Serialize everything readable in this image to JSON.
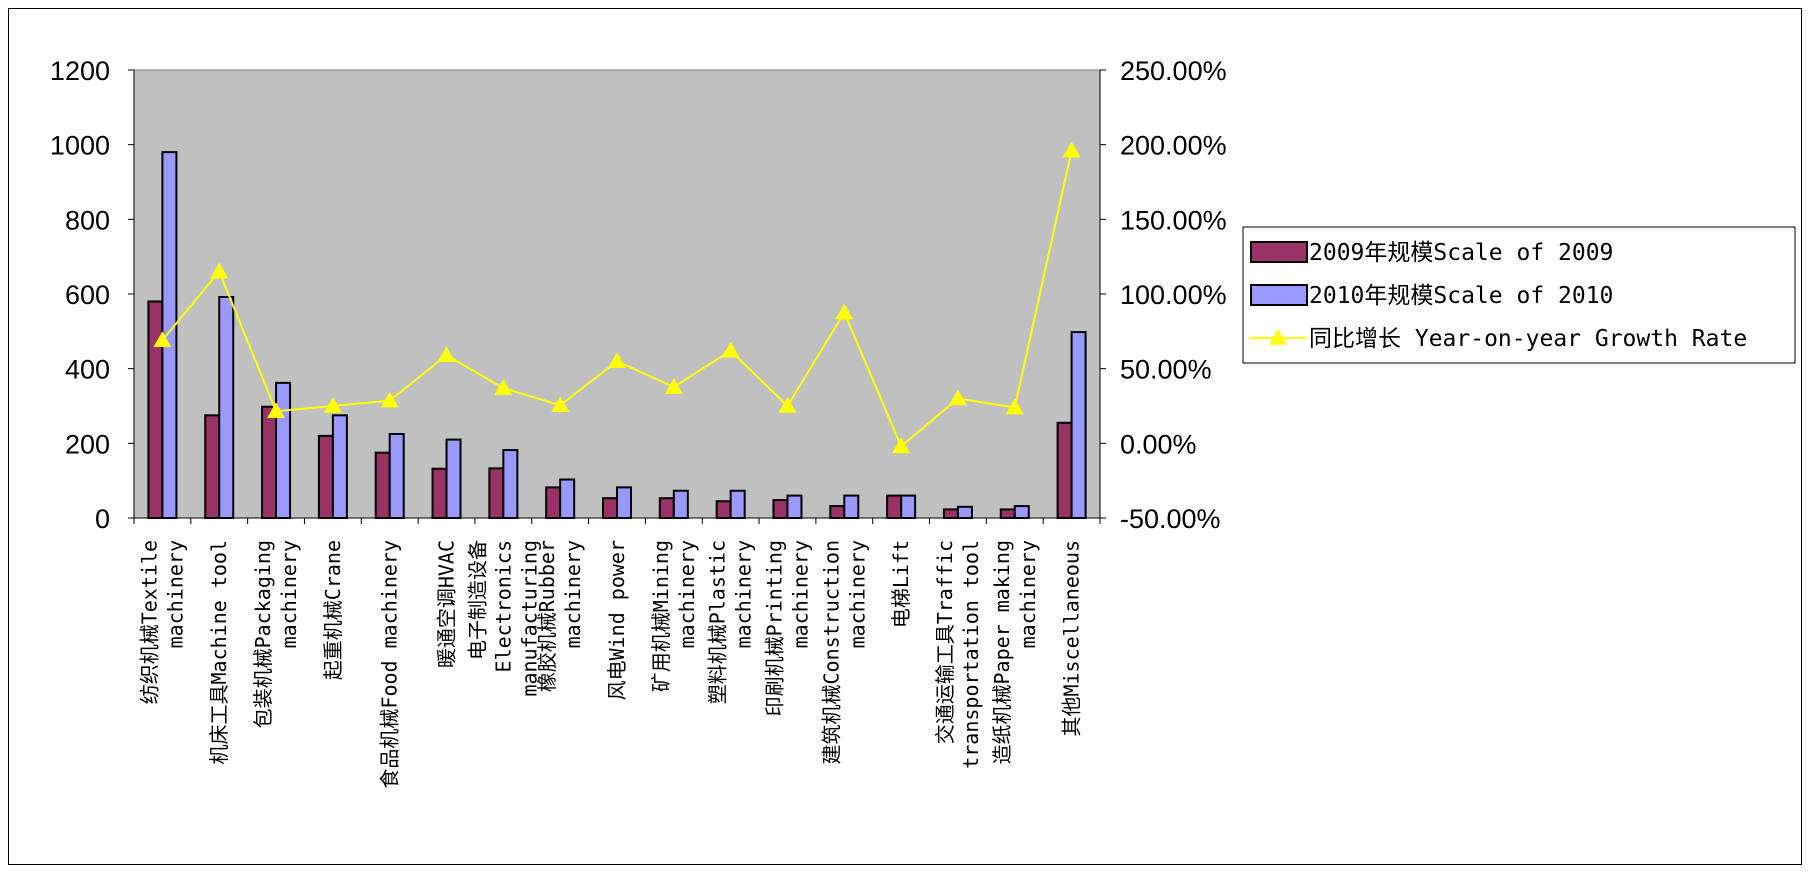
{
  "chart_data": {
    "type": "bar",
    "categories": [
      [
        "纺织机械Textile",
        "machinery"
      ],
      [
        "机床工具Machine  tool"
      ],
      [
        "包装机械Packaging",
        "machinery"
      ],
      [
        "起重机械Crane"
      ],
      [
        "食品机械Food  machinery"
      ],
      [
        "暖通空调HVAC"
      ],
      [
        "电子制造设备",
        "Electronics",
        "manufacturing"
      ],
      [
        "橡胶机械Rubber",
        "machinery"
      ],
      [
        "风电Wind  power"
      ],
      [
        "矿用机械Mining",
        "machinery"
      ],
      [
        "塑料机械Plastic",
        "machinery"
      ],
      [
        "印刷机械Printing",
        "machinery"
      ],
      [
        "建筑机械Construction",
        "machinery"
      ],
      [
        "电梯Lift"
      ],
      [
        "交通运输工具Traffic",
        "transportation tool"
      ],
      [
        "造纸机械Paper  making",
        "machinery"
      ],
      [
        "其他Miscellaneous"
      ]
    ],
    "series": [
      {
        "name": "2009年规模Scale of 2009",
        "axis": "left",
        "color": "#993366",
        "values": [
          580,
          275,
          298,
          220,
          175,
          132,
          133,
          82,
          53,
          53,
          45,
          48,
          32,
          60,
          23,
          23,
          255
        ]
      },
      {
        "name": "2010年规模Scale of 2010",
        "axis": "left",
        "color": "#9999ff",
        "values": [
          980,
          592,
          362,
          275,
          225,
          210,
          182,
          103,
          82,
          73,
          73,
          60,
          60,
          60,
          30,
          32,
          498
        ]
      },
      {
        "name": "同比增长 Year-on-year Growth Rate",
        "axis": "right",
        "color": "#ffff00",
        "type": "line",
        "values": [
          0.69,
          1.15,
          0.215,
          0.25,
          0.286,
          0.59,
          0.37,
          0.255,
          0.55,
          0.377,
          0.62,
          0.25,
          0.875,
          -0.02,
          0.3,
          0.24,
          1.96
        ]
      }
    ],
    "left_axis": {
      "min": 0,
      "max": 1200,
      "step": 200,
      "ticks": [
        "0",
        "200",
        "400",
        "600",
        "800",
        "1000",
        "1200"
      ]
    },
    "right_axis": {
      "min": -0.5,
      "max": 2.5,
      "step": 0.5,
      "ticks": [
        "-50.00%",
        "0.00%",
        "50.00%",
        "100.00%",
        "150.00%",
        "200.00%",
        "250.00%"
      ]
    },
    "plot_background": "#c0c0c0",
    "grid": false,
    "legend_position": "right"
  }
}
